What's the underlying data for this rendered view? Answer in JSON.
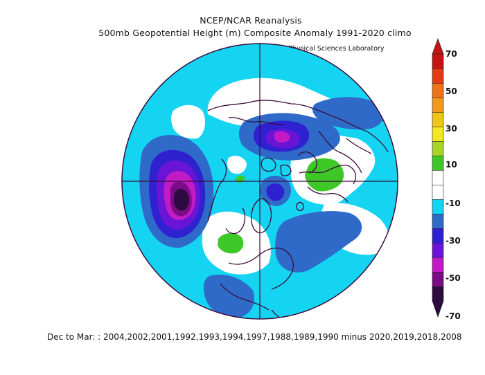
{
  "header": {
    "title": "NCEP/NCAR Reanalysis",
    "subtitle": "500mb Geopotential Height (m) Composite Anomaly 1991-2020 climo",
    "lab_label": "NOAA Physical Sciences Laboratory"
  },
  "footer": {
    "text": "Dec to Mar: : 2004,2002,2001,1992,1993,1994,1997,1988,1989,1990 minus 2020,2019,2018,2008"
  },
  "colorbar": {
    "ticks": [
      "70",
      "50",
      "30",
      "10",
      "-10",
      "-30",
      "-50",
      "-70"
    ],
    "colors": {
      "bin_1": "#2d0a3f",
      "bin_2": "#7a0c86",
      "bin_3": "#c21bc6",
      "bin_4": "#6a15d6",
      "bin_5": "#2f21d0",
      "bin_6": "#2f6ac8",
      "bin_7": "#14d4f2",
      "bin_8": "#ffffff",
      "bin_9": "#ffffff",
      "bin_10": "#3ec828",
      "bin_11": "#a8d42a",
      "bin_12": "#f4e623",
      "bin_13": "#f0c418",
      "bin_14": "#f3981e",
      "bin_15": "#f07218",
      "bin_16": "#e33a16",
      "bin_17": "#c41512"
    }
  },
  "map": {
    "projection": "north-polar-stereographic",
    "fields": [
      {
        "name": "north-pacific-low",
        "min_anomaly": -70
      },
      {
        "name": "north-atlantic-low",
        "min_anomaly": -40
      },
      {
        "name": "arctic-low",
        "min_anomaly": -40
      },
      {
        "name": "siberia-trough",
        "min_anomaly": -30
      },
      {
        "name": "europe-high",
        "max_anomaly": 20
      },
      {
        "name": "subtropical-pacific-high",
        "max_anomaly": 10
      }
    ]
  }
}
